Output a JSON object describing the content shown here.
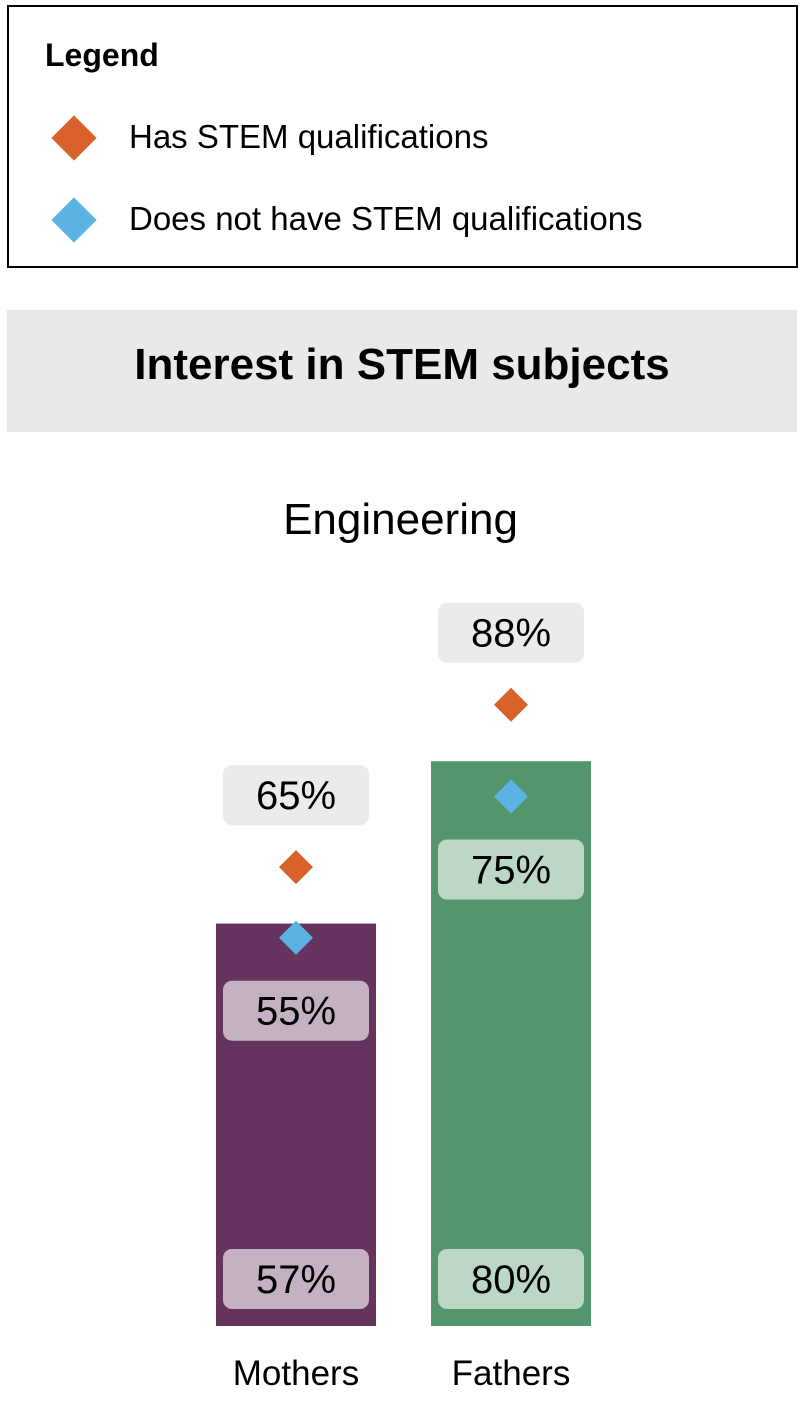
{
  "legend": {
    "title": "Legend",
    "items": [
      {
        "label": "Has STEM qualifications",
        "color": "#d9622b",
        "icon": "diamond-marker"
      },
      {
        "label": "Does not have STEM qualifications",
        "color": "#5bb3e4",
        "icon": "diamond-marker"
      }
    ]
  },
  "section_title": "Interest in STEM subjects",
  "chart_data": {
    "type": "bar",
    "title": "Engineering",
    "categories": [
      "Mothers",
      "Fathers"
    ],
    "ylim": [
      0,
      100
    ],
    "grid": false,
    "legend_position": "top",
    "series": [
      {
        "values": [
          57,
          80
        ],
        "colors": [
          "#65335d",
          "#53966d"
        ]
      },
      {
        "name": "Has STEM qualifications",
        "marker": "diamond",
        "color": "#d9622b",
        "values": [
          65,
          88
        ]
      },
      {
        "name": "Does not have STEM qualifications",
        "marker": "diamond",
        "color": "#5bb3e4",
        "values": [
          55,
          75
        ]
      }
    ]
  }
}
